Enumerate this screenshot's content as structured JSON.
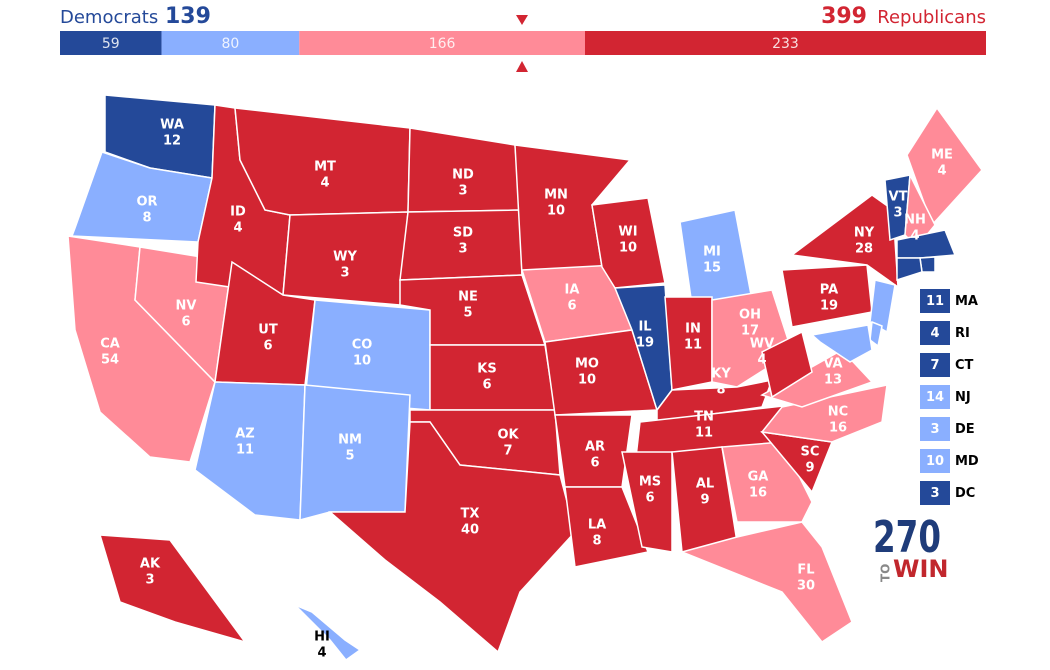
{
  "header": {
    "dem_label": "Democrats",
    "dem_total": 139,
    "rep_total": 399,
    "rep_label": "Republicans"
  },
  "bar": {
    "segments": [
      {
        "value": 59,
        "color": "#244999"
      },
      {
        "value": 80,
        "color": "#8aafff"
      },
      {
        "value": 166,
        "color": "#ff8b98"
      },
      {
        "value": 233,
        "color": "#d22532"
      }
    ]
  },
  "states": [
    {
      "abbr": "WA",
      "votes": 12,
      "color": "#244999"
    },
    {
      "abbr": "OR",
      "votes": 8,
      "color": "#8aafff"
    },
    {
      "abbr": "CA",
      "votes": 54,
      "color": "#ff8b98"
    },
    {
      "abbr": "NV",
      "votes": 6,
      "color": "#ff8b98"
    },
    {
      "abbr": "ID",
      "votes": 4,
      "color": "#d22532"
    },
    {
      "abbr": "MT",
      "votes": 4,
      "color": "#d22532"
    },
    {
      "abbr": "WY",
      "votes": 3,
      "color": "#d22532"
    },
    {
      "abbr": "UT",
      "votes": 6,
      "color": "#d22532"
    },
    {
      "abbr": "CO",
      "votes": 10,
      "color": "#8aafff"
    },
    {
      "abbr": "AZ",
      "votes": 11,
      "color": "#8aafff"
    },
    {
      "abbr": "NM",
      "votes": 5,
      "color": "#8aafff"
    },
    {
      "abbr": "ND",
      "votes": 3,
      "color": "#d22532"
    },
    {
      "abbr": "SD",
      "votes": 3,
      "color": "#d22532"
    },
    {
      "abbr": "NE",
      "votes": 5,
      "color": "#d22532"
    },
    {
      "abbr": "KS",
      "votes": 6,
      "color": "#d22532"
    },
    {
      "abbr": "OK",
      "votes": 7,
      "color": "#d22532"
    },
    {
      "abbr": "TX",
      "votes": 40,
      "color": "#d22532"
    },
    {
      "abbr": "MN",
      "votes": 10,
      "color": "#d22532"
    },
    {
      "abbr": "IA",
      "votes": 6,
      "color": "#ff8b98"
    },
    {
      "abbr": "MO",
      "votes": 10,
      "color": "#d22532"
    },
    {
      "abbr": "AR",
      "votes": 6,
      "color": "#d22532"
    },
    {
      "abbr": "LA",
      "votes": 8,
      "color": "#d22532"
    },
    {
      "abbr": "WI",
      "votes": 10,
      "color": "#d22532"
    },
    {
      "abbr": "IL",
      "votes": 19,
      "color": "#244999"
    },
    {
      "abbr": "MI",
      "votes": 15,
      "color": "#8aafff"
    },
    {
      "abbr": "IN",
      "votes": 11,
      "color": "#d22532"
    },
    {
      "abbr": "OH",
      "votes": 17,
      "color": "#ff8b98"
    },
    {
      "abbr": "KY",
      "votes": 8,
      "color": "#d22532"
    },
    {
      "abbr": "TN",
      "votes": 11,
      "color": "#d22532"
    },
    {
      "abbr": "MS",
      "votes": 6,
      "color": "#d22532"
    },
    {
      "abbr": "AL",
      "votes": 9,
      "color": "#d22532"
    },
    {
      "abbr": "GA",
      "votes": 16,
      "color": "#ff8b98"
    },
    {
      "abbr": "FL",
      "votes": 30,
      "color": "#ff8b98"
    },
    {
      "abbr": "SC",
      "votes": 9,
      "color": "#d22532"
    },
    {
      "abbr": "NC",
      "votes": 16,
      "color": "#ff8b98"
    },
    {
      "abbr": "VA",
      "votes": 13,
      "color": "#ff8b98"
    },
    {
      "abbr": "WV",
      "votes": 4,
      "color": "#d22532"
    },
    {
      "abbr": "PA",
      "votes": 19,
      "color": "#d22532"
    },
    {
      "abbr": "NY",
      "votes": 28,
      "color": "#d22532"
    },
    {
      "abbr": "ME",
      "votes": 4,
      "color": "#ff8b98"
    },
    {
      "abbr": "VT",
      "votes": 3,
      "color": "#244999"
    },
    {
      "abbr": "NH",
      "votes": 4,
      "color": "#ff8b98"
    },
    {
      "abbr": "AK",
      "votes": 3,
      "color": "#d22532"
    },
    {
      "abbr": "HI",
      "votes": 4,
      "color": "#8aafff"
    }
  ],
  "small_states": [
    {
      "abbr": "MA",
      "votes": 11,
      "color": "#244999"
    },
    {
      "abbr": "RI",
      "votes": 4,
      "color": "#244999"
    },
    {
      "abbr": "CT",
      "votes": 7,
      "color": "#244999"
    },
    {
      "abbr": "NJ",
      "votes": 14,
      "color": "#8aafff"
    },
    {
      "abbr": "DE",
      "votes": 3,
      "color": "#8aafff"
    },
    {
      "abbr": "MD",
      "votes": 10,
      "color": "#8aafff"
    },
    {
      "abbr": "DC",
      "votes": 3,
      "color": "#244999"
    }
  ],
  "logo": {
    "number": "270",
    "to": "TO",
    "win": "WIN"
  }
}
